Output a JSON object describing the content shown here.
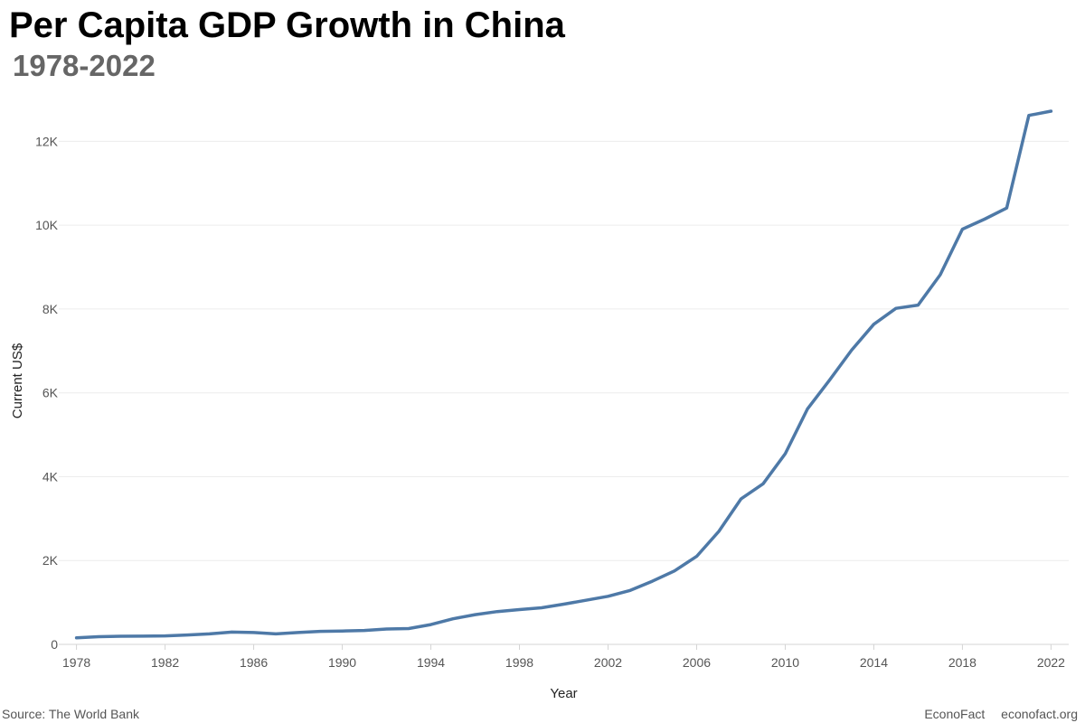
{
  "header": {
    "title": "Per Capita GDP Growth in China",
    "subtitle": "1978-2022"
  },
  "footer": {
    "source": "Source: The World Bank",
    "brand": "EconoFact",
    "url": "econofact.org"
  },
  "colors": {
    "line": "#4e79a7",
    "grid": "#ececec",
    "axis": "#d4d4d4"
  },
  "chart_data": {
    "type": "line",
    "title": "Per Capita GDP Growth in China",
    "subtitle": "1978-2022",
    "xlabel": "Year",
    "ylabel": "Current US$",
    "xlim": [
      1977.2,
      2022.8
    ],
    "ylim": [
      0,
      13000
    ],
    "grid": true,
    "x_ticks": [
      1978,
      1982,
      1986,
      1990,
      1994,
      1998,
      2002,
      2006,
      2010,
      2014,
      2018,
      2022
    ],
    "y_ticks": [
      {
        "value": 0,
        "label": "0"
      },
      {
        "value": 2000,
        "label": "2K"
      },
      {
        "value": 4000,
        "label": "4K"
      },
      {
        "value": 6000,
        "label": "6K"
      },
      {
        "value": 8000,
        "label": "8K"
      },
      {
        "value": 10000,
        "label": "10K"
      },
      {
        "value": 12000,
        "label": "12K"
      }
    ],
    "x": [
      1978,
      1979,
      1980,
      1981,
      1982,
      1983,
      1984,
      1985,
      1986,
      1987,
      1988,
      1989,
      1990,
      1991,
      1992,
      1993,
      1994,
      1995,
      1996,
      1997,
      1998,
      1999,
      2000,
      2001,
      2002,
      2003,
      2004,
      2005,
      2006,
      2007,
      2008,
      2009,
      2010,
      2011,
      2012,
      2013,
      2014,
      2015,
      2016,
      2017,
      2018,
      2019,
      2020,
      2021,
      2022
    ],
    "values": [
      156,
      183,
      195,
      197,
      203,
      225,
      251,
      294,
      282,
      251,
      283,
      310,
      318,
      333,
      366,
      377,
      473,
      610,
      709,
      782,
      829,
      873,
      959,
      1053,
      1148,
      1288,
      1508,
      1753,
      2099,
      2694,
      3468,
      3832,
      4550,
      5614,
      6301,
      7020,
      7636,
      8016,
      8094,
      8817,
      9905,
      10144,
      10409,
      12618,
      12720
    ]
  }
}
